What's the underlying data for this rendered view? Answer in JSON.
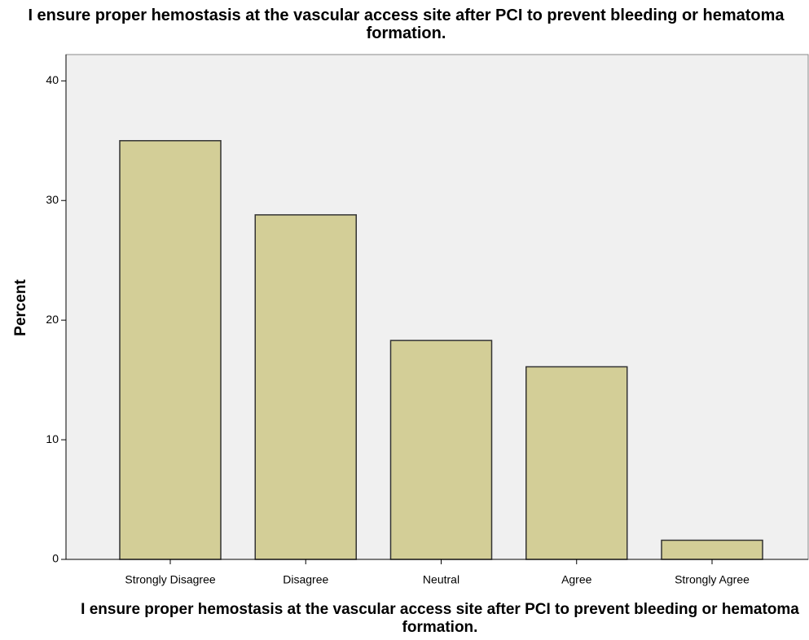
{
  "chart_data": {
    "type": "bar",
    "title": "I ensure proper hemostasis at the vascular access site after PCI to prevent bleeding or hematoma formation.",
    "x_label": "I ensure proper hemostasis at the vascular access site after PCI to prevent bleeding or hematoma formation.",
    "y_label": "Percent",
    "categories": [
      "Strongly Disagree",
      "Disagree",
      "Neutral",
      "Agree",
      "Strongly Agree"
    ],
    "values": [
      35.0,
      28.8,
      18.3,
      16.1,
      1.6
    ],
    "color": "#d3ce97",
    "ylim": [
      0,
      42.2
    ],
    "yticks": [
      0,
      10,
      20,
      30,
      40
    ],
    "grid": false
  }
}
